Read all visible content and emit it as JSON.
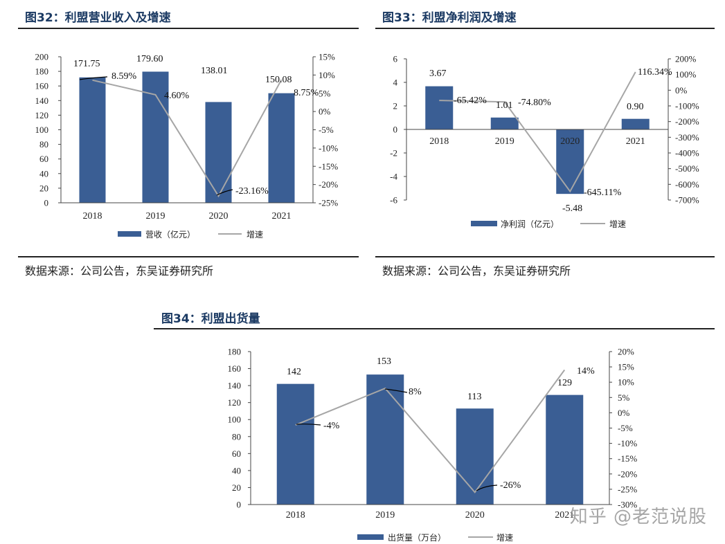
{
  "colors": {
    "bar": "#3a5e94",
    "line": "#a6a6a6",
    "title": "#1b3a63",
    "axis": "#444444",
    "leader": "#000000"
  },
  "figures": [
    {
      "title": "图32：利盟营业收入及增速",
      "source": "数据来源：公司公告，东吴证券研究所"
    },
    {
      "title": "图33：利盟净利润及增速",
      "source": "数据来源：公司公告，东吴证券研究所"
    },
    {
      "title": "图34：利盟出货量"
    }
  ],
  "watermark": "知乎 @老范说股",
  "chart_data": [
    {
      "type": "bar",
      "categories": [
        "2018",
        "2019",
        "2020",
        "2021"
      ],
      "series": [
        {
          "name": "营收（亿元）",
          "type": "bar",
          "axis": "left",
          "values": [
            171.75,
            179.6,
            138.01,
            150.08
          ],
          "labels": [
            "171.75",
            "179.60",
            "138.01",
            "150.08"
          ]
        },
        {
          "name": "增速",
          "type": "line",
          "axis": "right",
          "values": [
            8.59,
            4.6,
            -23.16,
            8.75
          ],
          "labels": [
            "8.59%",
            "4.60%",
            "-23.16%",
            "8.75%"
          ]
        }
      ],
      "y_left": {
        "min": 0,
        "max": 200,
        "step": 20,
        "ticks": [
          "0",
          "20",
          "40",
          "60",
          "80",
          "100",
          "120",
          "140",
          "160",
          "180",
          "200"
        ]
      },
      "y_right": {
        "min": -25,
        "max": 15,
        "step": 5,
        "ticks": [
          "-25%",
          "-20%",
          "-15%",
          "-10%",
          "-5%",
          "0%",
          "5%",
          "10%",
          "15%"
        ]
      },
      "legend": "bottom"
    },
    {
      "type": "bar",
      "categories": [
        "2018",
        "2019",
        "2020",
        "2021"
      ],
      "series": [
        {
          "name": "净利润（亿元）",
          "type": "bar",
          "axis": "left",
          "values": [
            3.67,
            1.01,
            -5.48,
            0.9
          ],
          "labels": [
            "3.67",
            "1.01",
            "-5.48",
            "0.90"
          ]
        },
        {
          "name": "增速",
          "type": "line",
          "axis": "right",
          "values": [
            -65.42,
            -74.8,
            -645.11,
            116.34
          ],
          "labels": [
            "-65.42%",
            "-74.80%",
            "-645.11%",
            "116.34%"
          ]
        }
      ],
      "y_left": {
        "min": -6,
        "max": 6,
        "step": 2,
        "ticks": [
          "-6",
          "-4",
          "-2",
          "0",
          "2",
          "4",
          "6"
        ]
      },
      "y_right": {
        "min": -700,
        "max": 200,
        "step": 100,
        "ticks": [
          "-700%",
          "-600%",
          "-500%",
          "-400%",
          "-300%",
          "-200%",
          "-100%",
          "0%",
          "100%",
          "200%"
        ]
      },
      "legend": "bottom"
    },
    {
      "type": "bar",
      "categories": [
        "2018",
        "2019",
        "2020",
        "2021"
      ],
      "series": [
        {
          "name": "出货量（万台）",
          "type": "bar",
          "axis": "left",
          "values": [
            142,
            153,
            113,
            129
          ],
          "labels": [
            "142",
            "153",
            "113",
            "129"
          ]
        },
        {
          "name": "增速",
          "type": "line",
          "axis": "right",
          "values": [
            -4,
            8,
            -26,
            14
          ],
          "labels": [
            "-4%",
            "8%",
            "-26%",
            "14%"
          ]
        }
      ],
      "y_left": {
        "min": 0,
        "max": 180,
        "step": 20,
        "ticks": [
          "0",
          "20",
          "40",
          "60",
          "80",
          "100",
          "120",
          "140",
          "160",
          "180"
        ]
      },
      "y_right": {
        "min": -30,
        "max": 20,
        "step": 5,
        "ticks": [
          "-30%",
          "-25%",
          "-20%",
          "-15%",
          "-10%",
          "-5%",
          "0%",
          "5%",
          "10%",
          "15%",
          "20%"
        ]
      },
      "legend": "bottom"
    }
  ]
}
